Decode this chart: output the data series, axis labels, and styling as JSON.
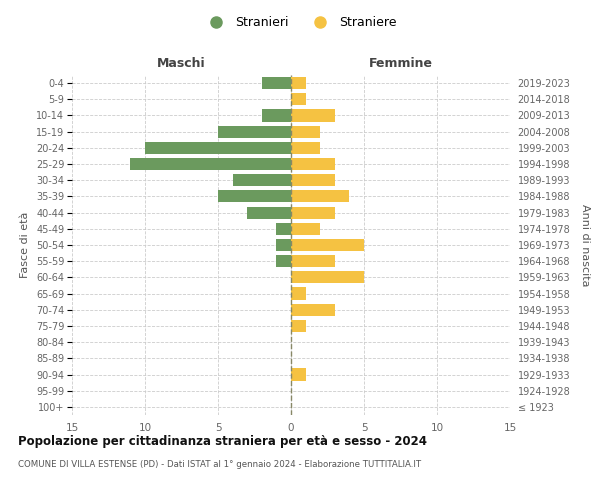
{
  "age_groups": [
    "100+",
    "95-99",
    "90-94",
    "85-89",
    "80-84",
    "75-79",
    "70-74",
    "65-69",
    "60-64",
    "55-59",
    "50-54",
    "45-49",
    "40-44",
    "35-39",
    "30-34",
    "25-29",
    "20-24",
    "15-19",
    "10-14",
    "5-9",
    "0-4"
  ],
  "birth_years": [
    "≤ 1923",
    "1924-1928",
    "1929-1933",
    "1934-1938",
    "1939-1943",
    "1944-1948",
    "1949-1953",
    "1954-1958",
    "1959-1963",
    "1964-1968",
    "1969-1973",
    "1974-1978",
    "1979-1983",
    "1984-1988",
    "1989-1993",
    "1994-1998",
    "1999-2003",
    "2004-2008",
    "2009-2013",
    "2014-2018",
    "2019-2023"
  ],
  "males": [
    0,
    0,
    0,
    0,
    0,
    0,
    0,
    0,
    0,
    1,
    1,
    1,
    3,
    5,
    4,
    11,
    10,
    5,
    2,
    0,
    2
  ],
  "females": [
    0,
    0,
    1,
    0,
    0,
    1,
    3,
    1,
    5,
    3,
    5,
    2,
    3,
    4,
    3,
    3,
    2,
    2,
    3,
    1,
    1
  ],
  "male_color": "#6b9a5e",
  "female_color": "#f5c242",
  "male_label": "Stranieri",
  "female_label": "Straniere",
  "title": "Popolazione per cittadinanza straniera per età e sesso - 2024",
  "subtitle": "COMUNE DI VILLA ESTENSE (PD) - Dati ISTAT al 1° gennaio 2024 - Elaborazione TUTTITALIA.IT",
  "xlabel_left": "Maschi",
  "xlabel_right": "Femmine",
  "ylabel_left": "Fasce di età",
  "ylabel_right": "Anni di nascita",
  "xlim": 15,
  "background_color": "#ffffff",
  "grid_color": "#cccccc"
}
